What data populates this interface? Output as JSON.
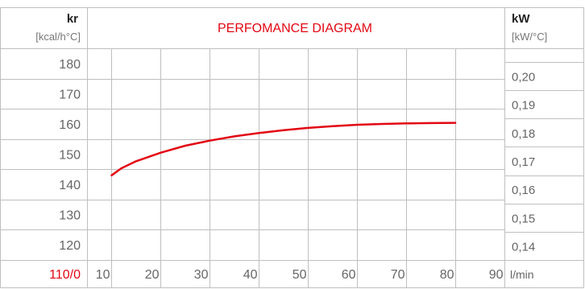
{
  "chart_data": {
    "type": "line",
    "title": "PERFOMANCE DIAGRAM",
    "left_axis": {
      "unit_top": "kr",
      "unit_sub": "[kcal/h°C]",
      "ticks": [
        "180",
        "170",
        "160",
        "150",
        "140",
        "130",
        "120"
      ],
      "origin_label": "110/0",
      "ylim": [
        110,
        185
      ]
    },
    "right_axis": {
      "unit_top": "kW",
      "unit_sub": "[kW/°C]",
      "ticks": [
        "0,20",
        "0,19",
        "0,18",
        "0,17",
        "0,16",
        "0,15",
        "0,14"
      ]
    },
    "x_axis": {
      "ticks": [
        "10",
        "20",
        "30",
        "40",
        "50",
        "60",
        "70",
        "80",
        "90"
      ],
      "unit": "l/min",
      "xlim": [
        5,
        90
      ]
    },
    "series": [
      {
        "color": "#e30613",
        "x": [
          10,
          12,
          15,
          20,
          25,
          30,
          35,
          40,
          45,
          50,
          55,
          60,
          65,
          70,
          75,
          80
        ],
        "y": [
          140,
          142.5,
          145,
          148,
          150.5,
          152.3,
          153.8,
          155,
          156,
          156.8,
          157.4,
          157.9,
          158.2,
          158.4,
          158.5,
          158.6
        ]
      }
    ],
    "grid": true
  },
  "colors": {
    "accent": "#e30613",
    "grid": "#bfbfbf",
    "text": "#666666",
    "header_text": "#222222"
  }
}
